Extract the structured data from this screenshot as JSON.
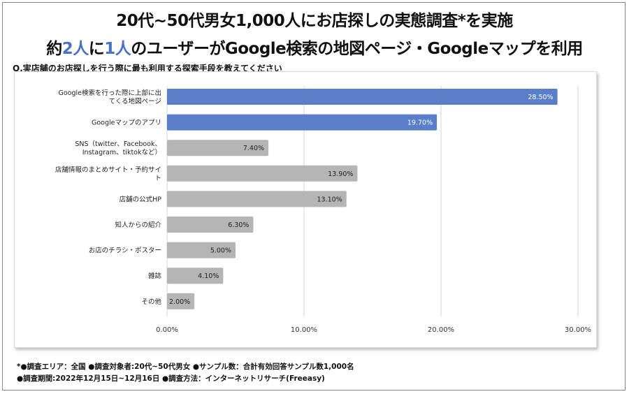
{
  "header": {
    "line1": "20代~50代男女1,000人にお店探しの実態調査*を実施",
    "line2_pre": "約",
    "line2_accent1": "2人",
    "line2_mid": "に",
    "line2_accent2": "1人",
    "line2_post": "のユーザーがGoogle検索の地図ページ・Googleマップを利用"
  },
  "question": "Q.実店舗のお店探しを行う際に最も利用する探索手段を教えてください",
  "footnotes": {
    "line1": "*●調査エリア：全国  ●調査対象者:20代~50代男女  ●サンプル数：合計有効回答サンプル数1,000名",
    "line2": "●調査期間:2022年12月15日~12月16日  ●調査方法：インターネットリサーチ(Freeasy)"
  },
  "colors": {
    "highlight": "#5b7ec8",
    "default": "#b5b5b5",
    "accent_text": "#4a72c4",
    "grid": "#d6d6d6"
  },
  "chart_data": {
    "type": "bar",
    "orientation": "horizontal",
    "categories": [
      [
        "Google検索を行った際に上部に出",
        "てくる地図ページ"
      ],
      [
        "Googleマップのアプリ"
      ],
      [
        "SNS（twitter、Facebook、",
        "Instagram、tiktokなど）"
      ],
      [
        "店舗情報のまとめサイト・予約サイ",
        "ト"
      ],
      [
        "店舗の公式HP"
      ],
      [
        "知人からの紹介"
      ],
      [
        "お店のチラシ・ポスター"
      ],
      [
        "雑誌"
      ],
      [
        "その他"
      ]
    ],
    "values": [
      28.5,
      19.7,
      7.4,
      13.9,
      13.1,
      6.3,
      5.0,
      4.1,
      2.0
    ],
    "value_labels": [
      "28.50%",
      "19.70%",
      "7.40%",
      "13.90%",
      "13.10%",
      "6.30%",
      "5.00%",
      "4.10%",
      "2.00%"
    ],
    "highlighted": [
      true,
      true,
      false,
      false,
      false,
      false,
      false,
      false,
      false
    ],
    "xlim": [
      0,
      30
    ],
    "xticks": [
      0,
      10,
      20,
      30
    ],
    "xtick_labels": [
      "0.00%",
      "10.00%",
      "20.00%",
      "30.00%"
    ],
    "grid": true
  }
}
